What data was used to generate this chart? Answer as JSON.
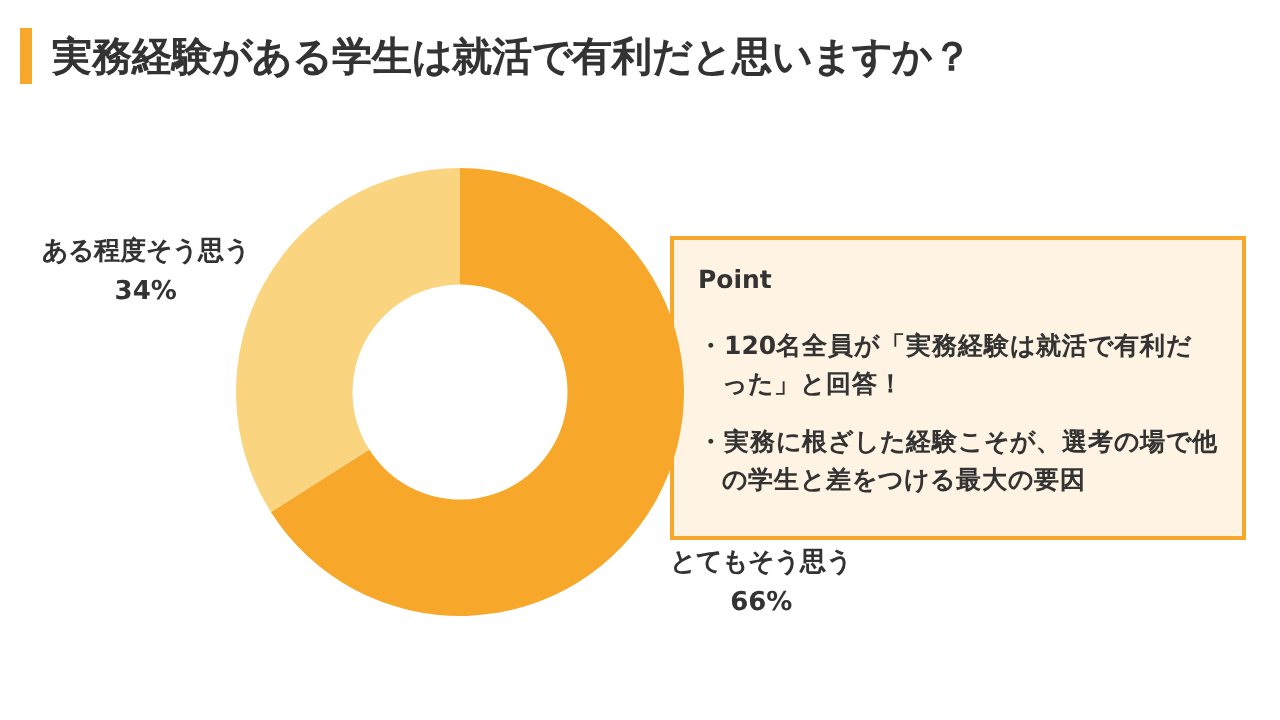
{
  "chart_data": {
    "type": "donut",
    "title": "実務経験がある学生は就活で有利だと思いますか？",
    "categories": [
      "とてもそう思う",
      "ある程度そう思う"
    ],
    "values": [
      66,
      34
    ],
    "value_labels": [
      "66%",
      "34%"
    ],
    "colors": [
      "#f7a82b",
      "#fbd47f"
    ],
    "legend": false,
    "annotations": [
      "Point",
      "・120名全員が「実務経験は就活で有利だった」と回答！",
      "・実務に根ざした経験こそが、選考の場で他の学生と差をつける最大の要因"
    ]
  }
}
